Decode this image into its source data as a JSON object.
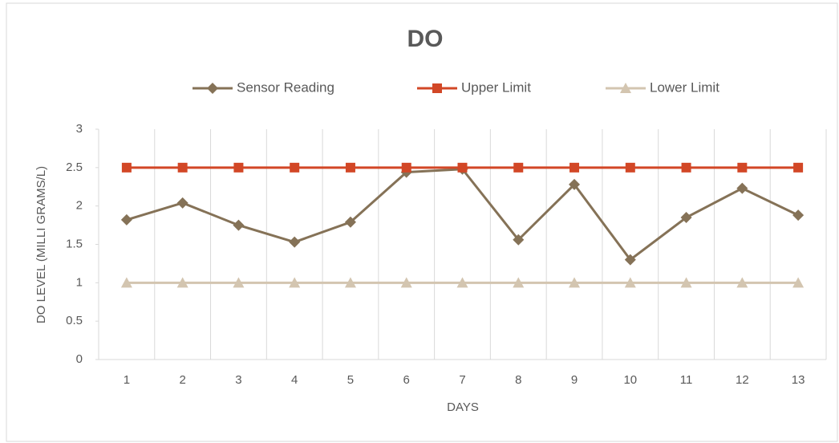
{
  "chart_data": {
    "type": "line",
    "title": "DO",
    "x_label": "DAYS",
    "y_label": "DO LEVEL (MILLI GRAMS/L)",
    "categories": [
      "1",
      "2",
      "3",
      "4",
      "5",
      "6",
      "7",
      "8",
      "9",
      "10",
      "11",
      "12",
      "13"
    ],
    "series": [
      {
        "name": "Sensor Reading",
        "color": "#857257",
        "marker": "diamond",
        "values": [
          1.82,
          2.04,
          1.75,
          1.53,
          1.79,
          2.44,
          2.48,
          1.56,
          2.28,
          1.3,
          1.85,
          2.23,
          1.88
        ]
      },
      {
        "name": "Upper Limit",
        "color": "#d24726",
        "marker": "square",
        "values": [
          2.5,
          2.5,
          2.5,
          2.5,
          2.5,
          2.5,
          2.5,
          2.5,
          2.5,
          2.5,
          2.5,
          2.5,
          2.5
        ]
      },
      {
        "name": "Lower Limit",
        "color": "#d3c5b0",
        "marker": "triangle",
        "values": [
          1,
          1,
          1,
          1,
          1,
          1,
          1,
          1,
          1,
          1,
          1,
          1,
          1
        ]
      }
    ],
    "ylim": [
      0,
      3
    ],
    "yticks": [
      0,
      0.5,
      1,
      1.5,
      2,
      2.5,
      3
    ],
    "legend": "top"
  }
}
